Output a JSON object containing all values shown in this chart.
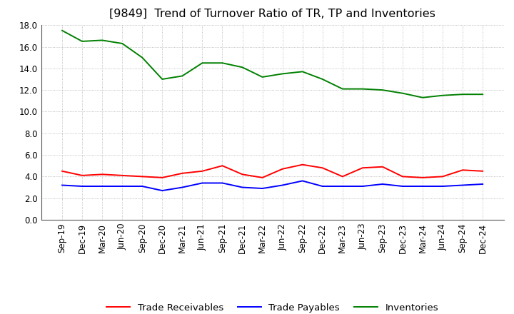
{
  "title": "[9849]  Trend of Turnover Ratio of TR, TP and Inventories",
  "x_labels": [
    "Sep-19",
    "Dec-19",
    "Mar-20",
    "Jun-20",
    "Sep-20",
    "Dec-20",
    "Mar-21",
    "Jun-21",
    "Sep-21",
    "Dec-21",
    "Mar-22",
    "Jun-22",
    "Sep-22",
    "Dec-22",
    "Mar-23",
    "Jun-23",
    "Sep-23",
    "Dec-23",
    "Mar-24",
    "Jun-24",
    "Sep-24",
    "Dec-24"
  ],
  "trade_receivables": [
    4.5,
    4.1,
    4.2,
    4.1,
    4.0,
    3.9,
    4.3,
    4.5,
    5.0,
    4.2,
    3.9,
    4.7,
    5.1,
    4.8,
    4.0,
    4.8,
    4.9,
    4.0,
    3.9,
    4.0,
    4.6,
    4.5
  ],
  "trade_payables": [
    3.2,
    3.1,
    3.1,
    3.1,
    3.1,
    2.7,
    3.0,
    3.4,
    3.4,
    3.0,
    2.9,
    3.2,
    3.6,
    3.1,
    3.1,
    3.1,
    3.3,
    3.1,
    3.1,
    3.1,
    3.2,
    3.3
  ],
  "inventories": [
    17.5,
    16.5,
    16.6,
    16.3,
    15.0,
    13.0,
    13.3,
    14.5,
    14.5,
    14.1,
    13.2,
    13.5,
    13.7,
    13.0,
    12.1,
    12.1,
    12.0,
    11.7,
    11.3,
    11.5,
    11.6,
    11.6
  ],
  "tr_color": "#ff0000",
  "tp_color": "#0000ff",
  "inv_color": "#008000",
  "ylim": [
    0.0,
    18.0
  ],
  "yticks": [
    0.0,
    2.0,
    4.0,
    6.0,
    8.0,
    10.0,
    12.0,
    14.0,
    16.0,
    18.0
  ],
  "background_color": "#ffffff",
  "grid_color": "#999999",
  "title_fontsize": 11.5,
  "legend_fontsize": 9.5,
  "tick_fontsize": 8.5,
  "line_width": 1.4
}
